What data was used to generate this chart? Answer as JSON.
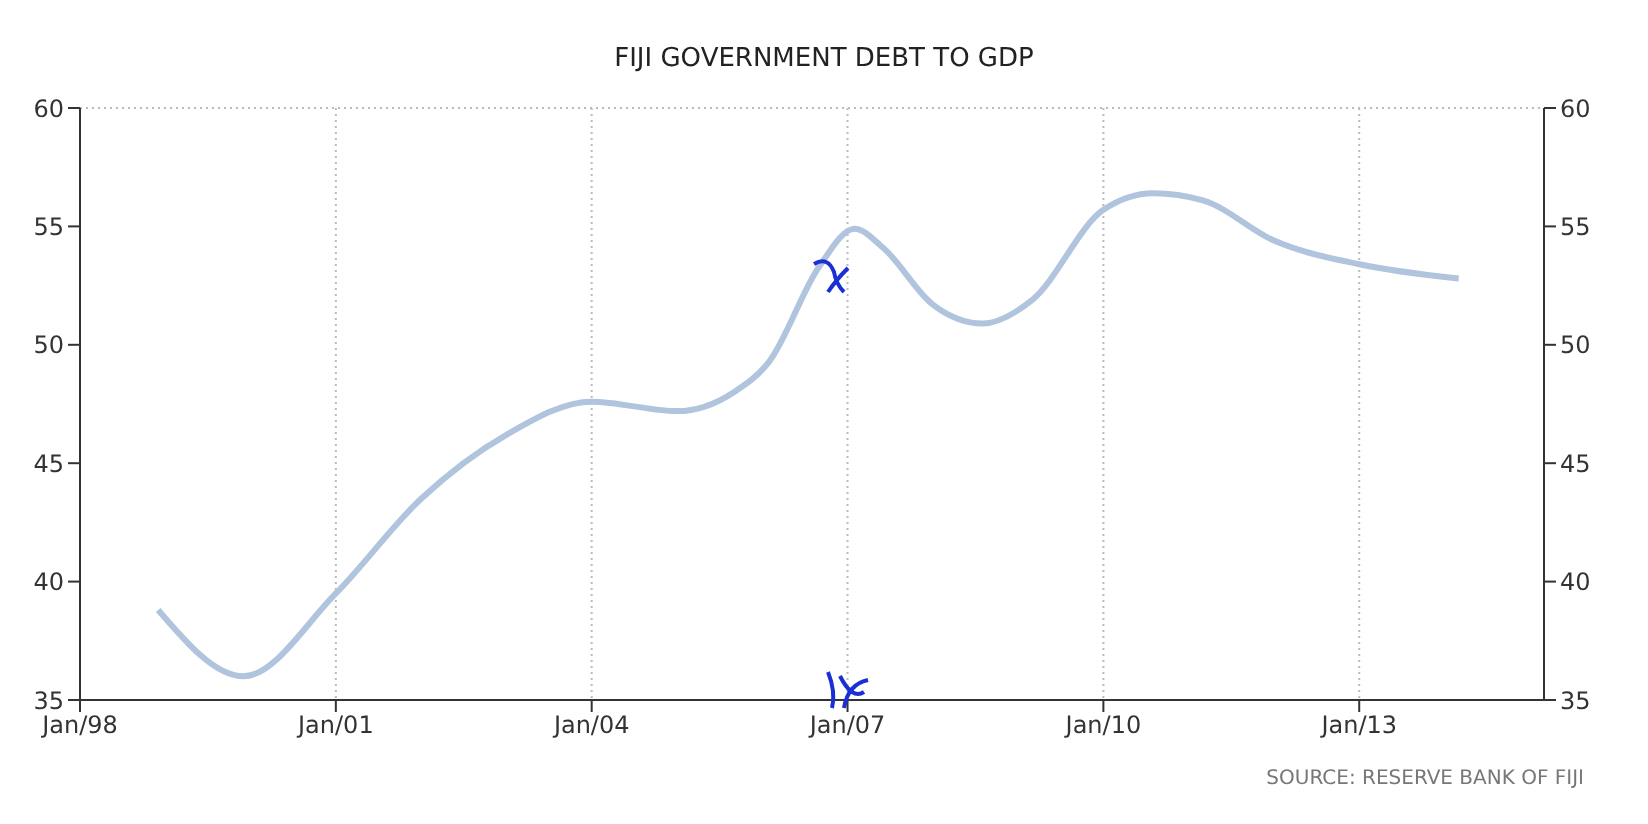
{
  "chart_data": {
    "type": "line",
    "title": "FIJI GOVERNMENT DEBT TO GDP",
    "x": [
      "1998-12",
      "1999-12",
      "2001-01",
      "2002-01",
      "2003-01",
      "2004-01",
      "2005-01",
      "2005-09",
      "2006-02",
      "2006-09",
      "2007-02",
      "2007-06",
      "2008-01",
      "2008-08",
      "2009-03",
      "2010-01",
      "2010-08",
      "2011-03",
      "2012-01",
      "2013-01",
      "2014-03"
    ],
    "series": [
      {
        "color": "#b0c4de",
        "values": [
          38.8,
          36.0,
          39.5,
          43.5,
          46.2,
          47.6,
          47.2,
          48.0,
          49.3,
          53.3,
          54.9,
          54.1,
          51.7,
          50.9,
          51.9,
          55.7,
          56.4,
          56.1,
          54.4,
          53.4,
          52.8
        ]
      }
    ],
    "xlim": [
      "1998-01",
      "2015-03"
    ],
    "xticks": [
      {
        "value": "1998-01",
        "label": "Jan/98"
      },
      {
        "value": "2001-01",
        "label": "Jan/01"
      },
      {
        "value": "2004-01",
        "label": "Jan/04"
      },
      {
        "value": "2007-01",
        "label": "Jan/07"
      },
      {
        "value": "2010-01",
        "label": "Jan/10"
      },
      {
        "value": "2013-01",
        "label": "Jan/13"
      }
    ],
    "ylim": [
      35,
      60
    ],
    "yticks": [
      35,
      40,
      45,
      50,
      55,
      60
    ],
    "y2lim": [
      35,
      60
    ],
    "y2ticks": [
      35,
      40,
      45,
      50,
      55,
      60
    ],
    "grid": true,
    "marker": "none",
    "line_style": "solid",
    "annotations": [
      "SOURCE: RESERVE BANK OF FIJI"
    ]
  }
}
